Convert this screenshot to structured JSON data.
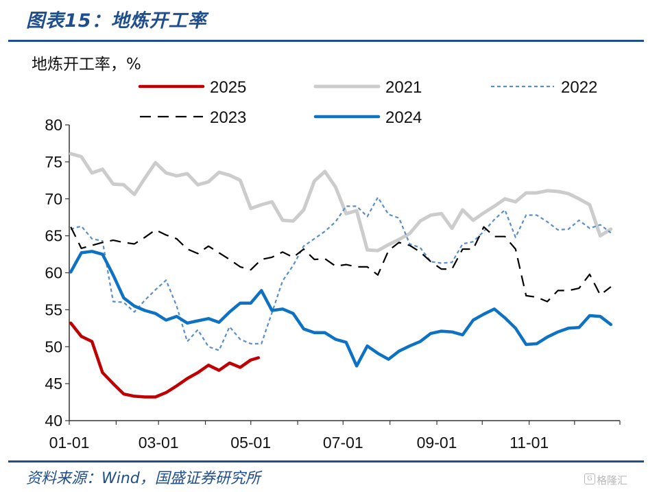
{
  "header": {
    "figure_title": "图表15：地炼开工率",
    "unit_label": "地炼开工率，%"
  },
  "footer": {
    "source": "资料来源：Wind，国盛证券研究所",
    "watermark": "格隆汇"
  },
  "colors": {
    "accent": "#1f4e8c",
    "s2025": "#c00000",
    "s2021": "#cccccc",
    "s2022": "#5b8ec9",
    "s2023": "#000000",
    "s2024": "#0e72c4"
  },
  "chart_data": {
    "type": "line",
    "xlabel": "",
    "ylabel": "地炼开工率，%",
    "ylim": [
      40,
      80
    ],
    "yticks": [
      40,
      45,
      50,
      55,
      60,
      65,
      70,
      75,
      80
    ],
    "xlim": [
      "01-01",
      "12-31"
    ],
    "xticks": [
      "01-01",
      "03-01",
      "05-01",
      "07-01",
      "09-01",
      "11-01"
    ],
    "grid": false,
    "legend_position": "top",
    "series": [
      {
        "name": "2025",
        "style": "solid-thick",
        "x": [
          "01-02",
          "01-09",
          "01-16",
          "01-23",
          "01-30",
          "02-06",
          "02-13",
          "02-20",
          "02-27",
          "03-06",
          "03-13",
          "03-20",
          "03-27",
          "04-03",
          "04-10",
          "04-17",
          "04-24",
          "05-01",
          "05-06"
        ],
        "values": [
          53.2,
          51.4,
          50.7,
          46.5,
          45.0,
          43.6,
          43.3,
          43.2,
          43.2,
          43.8,
          44.7,
          45.7,
          46.5,
          47.5,
          46.8,
          47.8,
          47.2,
          48.2,
          48.5
        ]
      },
      {
        "name": "2021",
        "style": "solid-thick",
        "x": [
          "01-02",
          "01-09",
          "01-16",
          "01-23",
          "01-30",
          "02-06",
          "02-13",
          "02-20",
          "02-27",
          "03-06",
          "03-13",
          "03-20",
          "03-27",
          "04-03",
          "04-10",
          "04-17",
          "04-24",
          "05-01",
          "05-08",
          "05-15",
          "05-22",
          "05-29",
          "06-05",
          "06-12",
          "06-19",
          "06-26",
          "07-03",
          "07-10",
          "07-17",
          "07-24",
          "07-31",
          "08-07",
          "08-14",
          "08-21",
          "08-28",
          "09-04",
          "09-11",
          "09-18",
          "09-25",
          "10-02",
          "10-09",
          "10-16",
          "10-23",
          "10-30",
          "11-06",
          "11-13",
          "11-20",
          "11-27",
          "12-04",
          "12-11",
          "12-18",
          "12-25"
        ],
        "values": [
          76.1,
          75.7,
          73.5,
          74.0,
          72.0,
          71.9,
          70.6,
          72.8,
          74.9,
          73.5,
          73.1,
          73.4,
          71.9,
          72.3,
          73.6,
          73.2,
          72.5,
          68.7,
          69.2,
          69.6,
          67.1,
          67.0,
          68.5,
          72.4,
          73.7,
          71.6,
          68.0,
          68.4,
          63.1,
          63.0,
          63.8,
          64.5,
          65.3,
          67.0,
          67.8,
          68.0,
          66.0,
          68.5,
          67.1,
          68.1,
          69.0,
          70.0,
          69.6,
          70.8,
          70.8,
          71.1,
          71.0,
          70.7,
          70.0,
          69.2,
          65.0,
          65.9
        ]
      },
      {
        "name": "2022",
        "style": "dashed",
        "x": [
          "01-02",
          "01-09",
          "01-16",
          "01-23",
          "01-30",
          "02-06",
          "02-13",
          "02-20",
          "02-27",
          "03-06",
          "03-13",
          "03-20",
          "03-27",
          "04-03",
          "04-10",
          "04-17",
          "04-24",
          "05-01",
          "05-08",
          "05-15",
          "05-22",
          "05-29",
          "06-05",
          "06-12",
          "06-19",
          "06-26",
          "07-03",
          "07-10",
          "07-17",
          "07-24",
          "07-31",
          "08-07",
          "08-14",
          "08-21",
          "08-28",
          "09-04",
          "09-11",
          "09-18",
          "09-25",
          "10-02",
          "10-09",
          "10-16",
          "10-23",
          "10-30",
          "11-06",
          "11-13",
          "11-20",
          "11-27",
          "12-04",
          "12-11",
          "12-18",
          "12-25"
        ],
        "values": [
          65.9,
          66.3,
          64.6,
          64.3,
          56.1,
          56.0,
          54.7,
          56.3,
          57.7,
          59.0,
          55.5,
          50.7,
          52.3,
          50.0,
          49.5,
          52.7,
          51.0,
          50.4,
          50.4,
          54.6,
          58.9,
          61.0,
          63.6,
          64.6,
          65.6,
          66.9,
          69.0,
          69.0,
          67.6,
          70.2,
          67.9,
          67.4,
          63.9,
          63.4,
          61.5,
          61.3,
          61.4,
          63.9,
          64.2,
          65.6,
          67.2,
          68.5,
          64.8,
          67.8,
          67.8,
          66.9,
          65.8,
          65.9,
          67.1,
          66.0,
          66.5,
          65.4
        ]
      },
      {
        "name": "2023",
        "style": "long-dash",
        "x": [
          "01-02",
          "01-09",
          "01-16",
          "01-23",
          "01-30",
          "02-06",
          "02-13",
          "02-20",
          "02-27",
          "03-06",
          "03-13",
          "03-20",
          "03-27",
          "04-03",
          "04-10",
          "04-17",
          "04-24",
          "05-01",
          "05-08",
          "05-15",
          "05-22",
          "05-29",
          "06-05",
          "06-12",
          "06-19",
          "06-26",
          "07-03",
          "07-10",
          "07-17",
          "07-24",
          "07-31",
          "08-07",
          "08-14",
          "08-21",
          "08-28",
          "09-04",
          "09-11",
          "09-18",
          "09-25",
          "10-02",
          "10-09",
          "10-16",
          "10-23",
          "10-30",
          "11-06",
          "11-13",
          "11-20",
          "11-27",
          "12-04",
          "12-11",
          "12-18",
          "12-25"
        ],
        "values": [
          66.2,
          63.3,
          63.7,
          64.1,
          64.4,
          64.1,
          63.9,
          64.8,
          65.8,
          65.1,
          64.6,
          63.2,
          62.6,
          63.6,
          62.7,
          61.8,
          60.8,
          60.4,
          61.8,
          62.1,
          62.8,
          62.1,
          63.2,
          61.8,
          61.9,
          60.9,
          61.1,
          60.8,
          60.8,
          59.7,
          63.0,
          64.1,
          63.7,
          62.8,
          61.5,
          60.5,
          60.5,
          63.2,
          63.2,
          66.2,
          64.9,
          64.9,
          63.2,
          56.9,
          56.7,
          56.1,
          57.6,
          57.6,
          57.9,
          59.8,
          57.0,
          58.1
        ]
      },
      {
        "name": "2024",
        "style": "solid-thick",
        "x": [
          "01-02",
          "01-09",
          "01-16",
          "01-23",
          "01-30",
          "02-06",
          "02-13",
          "02-20",
          "02-27",
          "03-06",
          "03-13",
          "03-20",
          "03-27",
          "04-03",
          "04-10",
          "04-17",
          "04-24",
          "05-01",
          "05-08",
          "05-15",
          "05-22",
          "05-29",
          "06-05",
          "06-12",
          "06-19",
          "06-26",
          "07-03",
          "07-10",
          "07-17",
          "07-24",
          "07-31",
          "08-07",
          "08-14",
          "08-21",
          "08-28",
          "09-04",
          "09-11",
          "09-18",
          "09-25",
          "10-02",
          "10-09",
          "10-16",
          "10-23",
          "10-30",
          "11-06",
          "11-13",
          "11-20",
          "11-27",
          "12-04",
          "12-11",
          "12-18",
          "12-25"
        ],
        "values": [
          60.1,
          62.7,
          62.9,
          62.5,
          59.7,
          56.6,
          55.5,
          54.9,
          54.5,
          53.6,
          54.1,
          53.2,
          53.5,
          53.8,
          53.3,
          54.7,
          55.9,
          55.9,
          57.6,
          54.9,
          55.1,
          54.5,
          52.4,
          51.9,
          51.9,
          51.0,
          50.6,
          47.4,
          50.1,
          49.1,
          48.3,
          49.4,
          50.1,
          50.7,
          51.8,
          52.1,
          52.0,
          51.6,
          53.6,
          54.4,
          55.1,
          53.9,
          52.5,
          50.3,
          50.4,
          51.3,
          52.0,
          52.5,
          52.6,
          54.2,
          54.1,
          53.0
        ]
      }
    ]
  }
}
